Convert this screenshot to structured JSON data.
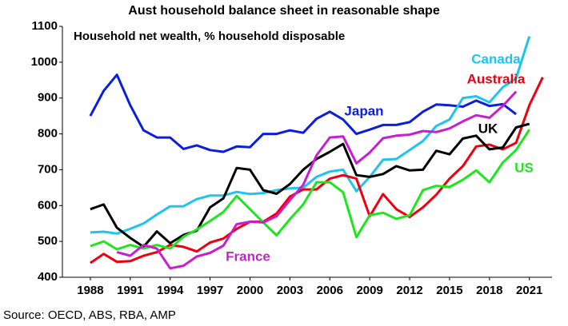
{
  "chart_data": {
    "type": "line",
    "title": "Aust household balance sheet in reasonable shape",
    "subtitle": "Household net wealth, % household disposable",
    "source": "Source: OECD, ABS, RBA, AMP",
    "xlim": [
      1985.9,
      2022.7
    ],
    "ylim": [
      400,
      1100
    ],
    "xticks": [
      1988,
      1991,
      1994,
      1997,
      2000,
      2003,
      2006,
      2009,
      2012,
      2015,
      2018,
      2021
    ],
    "yticks": [
      400,
      500,
      600,
      700,
      800,
      900,
      1000,
      1100
    ],
    "series": [
      {
        "name": "Japan",
        "color": "#0a1edc",
        "x": [
          1988,
          1989,
          1990,
          1991,
          1992,
          1993,
          1994,
          1995,
          1996,
          1997,
          1998,
          1999,
          2000,
          2001,
          2002,
          2003,
          2004,
          2005,
          2006,
          2007,
          2008,
          2009,
          2010,
          2011,
          2012,
          2013,
          2014,
          2015,
          2016,
          2017,
          2018,
          2019,
          2020
        ],
        "values": [
          850,
          920,
          965,
          880,
          810,
          790,
          790,
          758,
          768,
          755,
          750,
          765,
          763,
          800,
          800,
          810,
          803,
          842,
          862,
          840,
          800,
          812,
          825,
          825,
          833,
          862,
          882,
          880,
          876,
          893,
          878,
          883,
          855
        ]
      },
      {
        "name": "Canada",
        "color": "#1ec3f0",
        "x": [
          1988,
          1989,
          1990,
          1991,
          1992,
          1993,
          1994,
          1995,
          1996,
          1997,
          1998,
          1999,
          2000,
          2001,
          2002,
          2003,
          2004,
          2005,
          2006,
          2007,
          2008,
          2009,
          2010,
          2011,
          2012,
          2013,
          2014,
          2015,
          2016,
          2017,
          2018,
          2019,
          2020,
          2021
        ],
        "values": [
          525,
          527,
          522,
          535,
          550,
          575,
          598,
          598,
          618,
          628,
          628,
          638,
          632,
          635,
          643,
          648,
          650,
          680,
          695,
          700,
          640,
          680,
          728,
          730,
          755,
          780,
          822,
          840,
          900,
          905,
          888,
          930,
          955,
          1072
        ]
      },
      {
        "name": "Australia",
        "color": "#f0000f",
        "x": [
          1988,
          1989,
          1990,
          1991,
          1992,
          1993,
          1994,
          1995,
          1996,
          1997,
          1998,
          1999,
          2000,
          2001,
          2002,
          2003,
          2004,
          2005,
          2006,
          2007,
          2008,
          2009,
          2010,
          2011,
          2012,
          2013,
          2014,
          2015,
          2016,
          2017,
          2018,
          2019,
          2020,
          2021,
          2022
        ],
        "values": [
          440,
          465,
          443,
          445,
          460,
          470,
          490,
          485,
          472,
          497,
          508,
          535,
          555,
          555,
          578,
          625,
          645,
          645,
          675,
          685,
          675,
          570,
          632,
          590,
          568,
          595,
          630,
          675,
          710,
          765,
          770,
          757,
          775,
          880,
          958
        ]
      },
      {
        "name": "UK",
        "color": "#000000",
        "x": [
          1988,
          1989,
          1990,
          1991,
          1992,
          1993,
          1994,
          1995,
          1996,
          1997,
          1998,
          1999,
          2000,
          2001,
          2002,
          2003,
          2004,
          2005,
          2006,
          2007,
          2008,
          2009,
          2010,
          2011,
          2012,
          2013,
          2014,
          2015,
          2016,
          2017,
          2018,
          2019,
          2020,
          2021
        ],
        "values": [
          590,
          603,
          538,
          510,
          485,
          528,
          495,
          518,
          530,
          595,
          620,
          705,
          700,
          643,
          633,
          660,
          700,
          730,
          750,
          772,
          685,
          680,
          688,
          710,
          698,
          700,
          753,
          743,
          787,
          795,
          757,
          762,
          818,
          828
        ]
      },
      {
        "name": "US",
        "color": "#1ee61e",
        "x": [
          1988,
          1989,
          1990,
          1991,
          1992,
          1993,
          1994,
          1995,
          1996,
          1997,
          1998,
          1999,
          2000,
          2001,
          2002,
          2003,
          2004,
          2005,
          2006,
          2007,
          2008,
          2009,
          2010,
          2011,
          2012,
          2013,
          2014,
          2015,
          2016,
          2017,
          2018,
          2019,
          2020,
          2021
        ],
        "values": [
          487,
          500,
          478,
          490,
          480,
          490,
          480,
          513,
          533,
          557,
          582,
          627,
          590,
          553,
          517,
          562,
          603,
          665,
          665,
          637,
          512,
          573,
          580,
          563,
          573,
          643,
          655,
          652,
          672,
          698,
          665,
          720,
          755,
          812
        ]
      },
      {
        "name": "France",
        "color": "#c81ed2",
        "x": [
          1990,
          1991,
          1992,
          1993,
          1994,
          1995,
          1996,
          1997,
          1998,
          1999,
          2000,
          2001,
          2002,
          2003,
          2004,
          2005,
          2006,
          2007,
          2008,
          2009,
          2010,
          2011,
          2012,
          2013,
          2014,
          2015,
          2016,
          2017,
          2018,
          2019,
          2020
        ],
        "values": [
          470,
          460,
          490,
          480,
          425,
          432,
          458,
          468,
          488,
          548,
          555,
          553,
          570,
          615,
          658,
          740,
          790,
          793,
          718,
          748,
          788,
          795,
          798,
          808,
          805,
          815,
          835,
          852,
          845,
          878,
          918
        ]
      }
    ]
  }
}
